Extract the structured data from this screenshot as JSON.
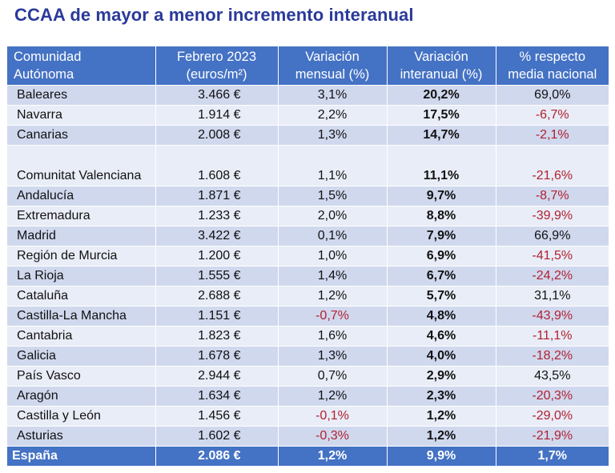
{
  "title": "CCAA de mayor a menor incremento interanual",
  "header": {
    "c1_line1": "Comunidad",
    "c1_line2": "Autónoma",
    "c2_line1": "Febrero 2023",
    "c2_line2": "(euros/m²)",
    "c3_line1": "Variación",
    "c3_line2": "mensual (%)",
    "c4_line1": "Variación",
    "c4_line2": "interanual (%)",
    "c5_line1": "% respecto",
    "c5_line2": "media nacional"
  },
  "rows": [
    {
      "name": "Baleares",
      "price": "3.466 €",
      "monthly": "3,1%",
      "annual": "20,2%",
      "vs_national": "69,0%"
    },
    {
      "name": "Navarra",
      "price": "1.914 €",
      "monthly": "2,2%",
      "annual": "17,5%",
      "vs_national": "-6,7%"
    },
    {
      "name": "Canarias",
      "price": "2.008 €",
      "monthly": "1,3%",
      "annual": "14,7%",
      "vs_national": "-2,1%"
    },
    {
      "name": "Comunitat Valenciana",
      "price": "1.608 €",
      "monthly": "1,1%",
      "annual": "11,1%",
      "vs_national": "-21,6%"
    },
    {
      "name": "Andalucía",
      "price": "1.871 €",
      "monthly": "1,5%",
      "annual": "9,7%",
      "vs_national": "-8,7%"
    },
    {
      "name": "Extremadura",
      "price": "1.233 €",
      "monthly": "2,0%",
      "annual": "8,8%",
      "vs_national": "-39,9%"
    },
    {
      "name": "Madrid",
      "price": "3.422 €",
      "monthly": "0,1%",
      "annual": "7,9%",
      "vs_national": "66,9%"
    },
    {
      "name": "Región de Murcia",
      "price": "1.200 €",
      "monthly": "1,0%",
      "annual": "6,9%",
      "vs_national": "-41,5%"
    },
    {
      "name": "La Rioja",
      "price": "1.555 €",
      "monthly": "1,4%",
      "annual": "6,7%",
      "vs_national": "-24,2%"
    },
    {
      "name": "Cataluña",
      "price": "2.688 €",
      "monthly": "1,2%",
      "annual": "5,7%",
      "vs_national": "31,1%"
    },
    {
      "name": "Castilla-La Mancha",
      "price": "1.151 €",
      "monthly": "-0,7%",
      "annual": "4,8%",
      "vs_national": "-43,9%"
    },
    {
      "name": "Cantabria",
      "price": "1.823 €",
      "monthly": "1,6%",
      "annual": "4,6%",
      "vs_national": "-11,1%"
    },
    {
      "name": "Galicia",
      "price": "1.678 €",
      "monthly": "1,3%",
      "annual": "4,0%",
      "vs_national": "-18,2%"
    },
    {
      "name": "País Vasco",
      "price": "2.944 €",
      "monthly": "0,7%",
      "annual": "2,9%",
      "vs_national": "43,5%"
    },
    {
      "name": "Aragón",
      "price": "1.634 €",
      "monthly": "1,2%",
      "annual": "2,3%",
      "vs_national": "-20,3%"
    },
    {
      "name": "Castilla y León",
      "price": "1.456 €",
      "monthly": "-0,1%",
      "annual": "1,2%",
      "vs_national": "-29,0%"
    },
    {
      "name": "Asturias",
      "price": "1.602 €",
      "monthly": "-0,3%",
      "annual": "1,2%",
      "vs_national": "-21,9%"
    }
  ],
  "total": {
    "name": "España",
    "price": "2.086 €",
    "monthly": "1,2%",
    "annual": "9,9%",
    "vs_national": "1,7%"
  },
  "colors": {
    "header_bg": "#4472c4",
    "row_dark": "#d0d8ee",
    "row_light": "#e9edf7",
    "negative": "#b0212f",
    "title": "#2a3a9a"
  }
}
